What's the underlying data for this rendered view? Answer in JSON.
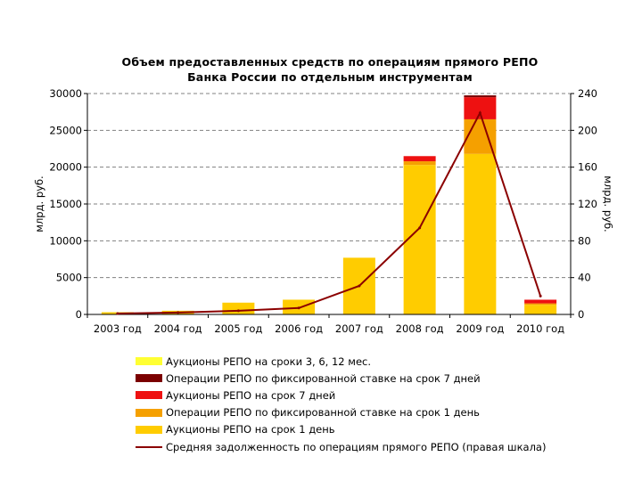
{
  "title_line1": "Объем предоставленных средств по операциям прямого РЕПО",
  "title_line2": "Банка России по отдельным инструментам",
  "chart_data": {
    "type": "bar",
    "stacked": true,
    "categories": [
      "2003 год",
      "2004 год",
      "2005 год",
      "2006 год",
      "2007 год",
      "2008 год",
      "2009 год",
      "2010 год"
    ],
    "ylabel": "млрд. руб.",
    "ylabel_right": "млрд. руб.",
    "ylim": [
      0,
      30000
    ],
    "yticks": [
      0,
      5000,
      10000,
      15000,
      20000,
      25000,
      30000
    ],
    "y2lim": [
      0,
      240
    ],
    "y2ticks": [
      0,
      40,
      80,
      120,
      160,
      200,
      240
    ],
    "grid": true,
    "legend_position": "bottom",
    "series": [
      {
        "name": "Аукционы РЕПО на сроки 3, 6, 12 мес.",
        "color": "#ffff33",
        "values": [
          0,
          0,
          0,
          0,
          0,
          0,
          0,
          0
        ]
      },
      {
        "name": "Операции РЕПО по фиксированной ставке на срок 7 дней",
        "color": "#7b0000",
        "values": [
          0,
          0,
          0,
          0,
          0,
          0,
          250,
          0
        ]
      },
      {
        "name": "Аукционы РЕПО на срок 7 дней",
        "color": "#ee1111",
        "values": [
          0,
          0,
          0,
          0,
          0,
          700,
          3000,
          500
        ]
      },
      {
        "name": "Операции РЕПО по фиксированной ставке на срок 1 день",
        "color": "#f5a000",
        "values": [
          0,
          0,
          0,
          0,
          0,
          500,
          4700,
          200
        ]
      },
      {
        "name": "Аукционы РЕПО на срок 1 день",
        "color": "#ffcc00",
        "values": [
          300,
          500,
          1600,
          2000,
          7700,
          20300,
          21800,
          1300
        ]
      }
    ],
    "line_series": {
      "name": "Средняя задолженность по операциям прямого РЕПО (правая шкала)",
      "color": "#8b0000",
      "axis": "right",
      "values": [
        1,
        2,
        4,
        7,
        31,
        94,
        219,
        20
      ]
    }
  }
}
